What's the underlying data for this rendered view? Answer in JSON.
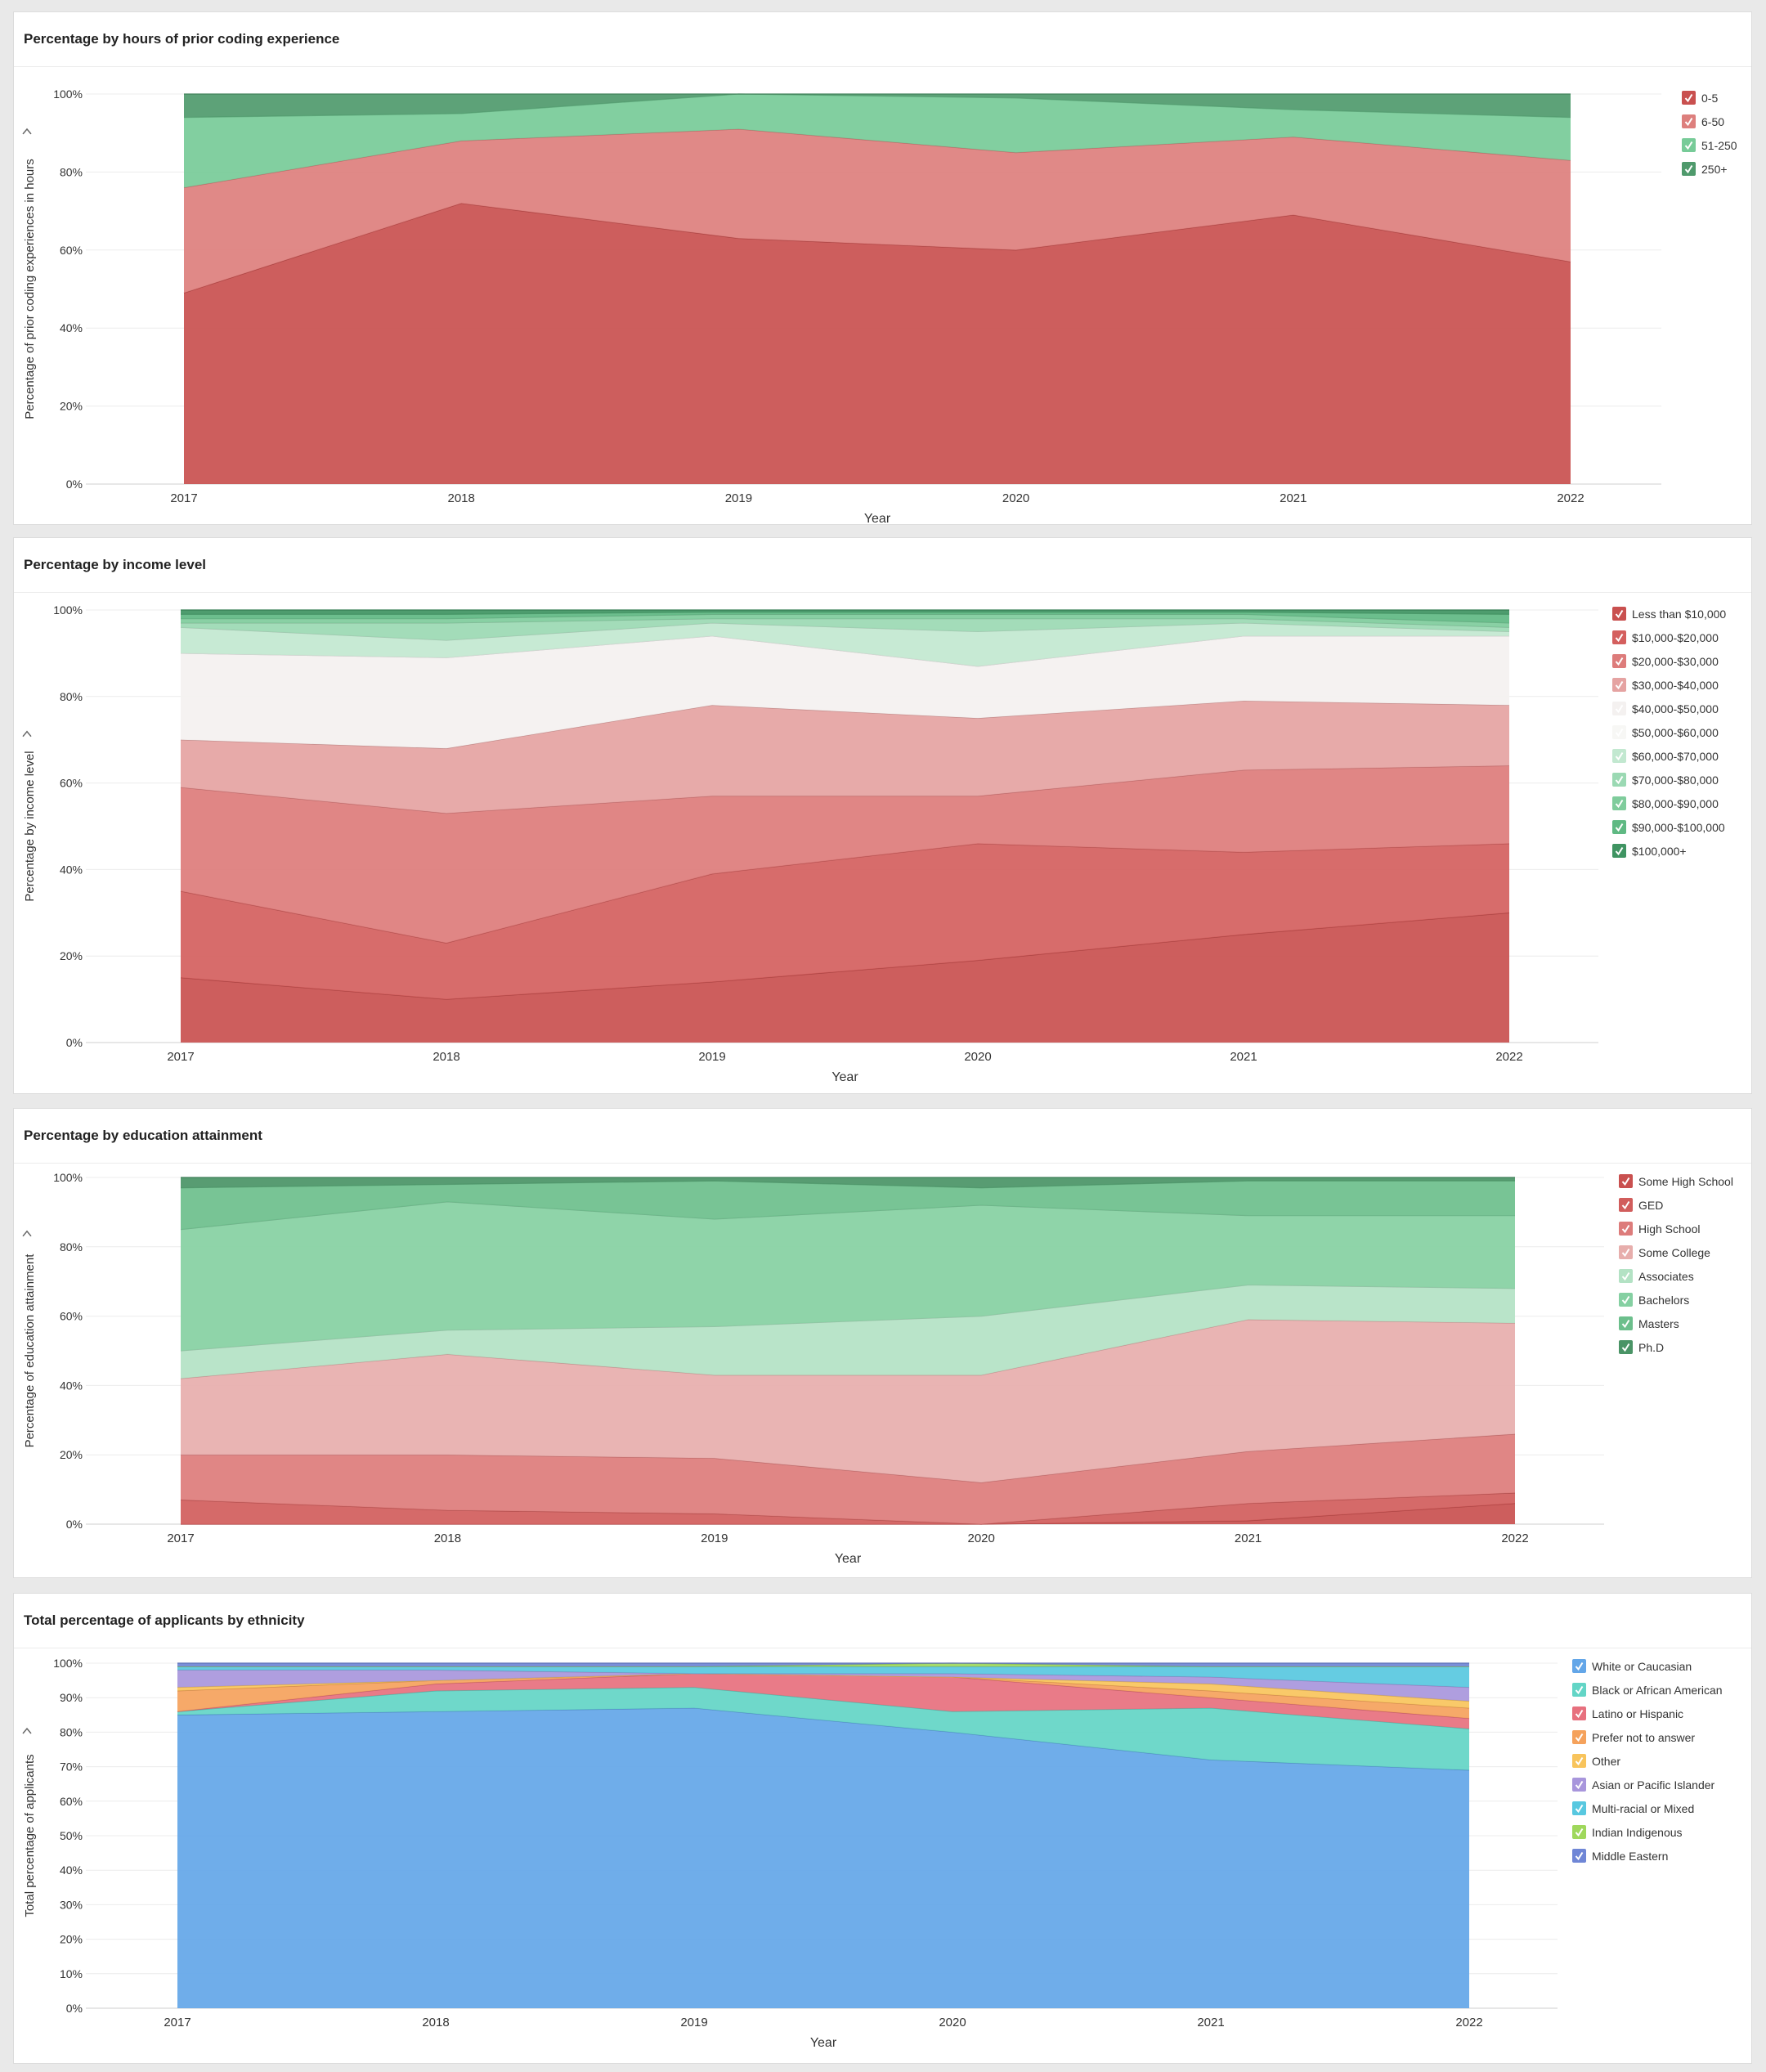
{
  "chart_data": [
    {
      "type": "area",
      "stacked": true,
      "title": "Percentage by hours of prior coding experience",
      "xlabel": "Year",
      "ylabel": "Percentage of prior coding experiences in hours",
      "ylim": [
        0,
        100
      ],
      "yticks": [
        "0%",
        "20%",
        "40%",
        "60%",
        "80%",
        "100%"
      ],
      "categories": [
        "2017",
        "2018",
        "2019",
        "2020",
        "2021",
        "2022"
      ],
      "legend_position": "top-right",
      "series": [
        {
          "name": "0-5",
          "color": "#c9504f",
          "values": [
            49,
            72,
            63,
            60,
            69,
            57
          ]
        },
        {
          "name": "6-50",
          "color": "#dd7f7d",
          "values": [
            27,
            16,
            28,
            25,
            20,
            26
          ]
        },
        {
          "name": "51-250",
          "color": "#77cb98",
          "values": [
            18,
            7,
            9,
            14,
            7,
            11
          ]
        },
        {
          "name": "250+",
          "color": "#4f9a6c",
          "values": [
            6,
            5,
            0,
            1,
            4,
            6
          ]
        }
      ]
    },
    {
      "type": "area",
      "stacked": true,
      "title": "Percentage by income level",
      "xlabel": "Year",
      "ylabel": "Percentage by income level",
      "ylim": [
        0,
        100
      ],
      "yticks": [
        "0%",
        "20%",
        "40%",
        "60%",
        "80%",
        "100%"
      ],
      "categories": [
        "2017",
        "2018",
        "2019",
        "2020",
        "2021",
        "2022"
      ],
      "legend_position": "top-right",
      "series": [
        {
          "name": "Less than $10,000",
          "color": "#c9504f",
          "values": [
            15,
            10,
            14,
            19,
            25,
            30
          ]
        },
        {
          "name": "$10,000-$20,000",
          "color": "#d45f5e",
          "values": [
            20,
            13,
            25,
            27,
            19,
            16
          ]
        },
        {
          "name": "$20,000-$30,000",
          "color": "#dd7c7b",
          "values": [
            24,
            30,
            18,
            11,
            19,
            18
          ]
        },
        {
          "name": "$30,000-$40,000",
          "color": "#e5a3a2",
          "values": [
            11,
            15,
            21,
            18,
            16,
            14
          ]
        },
        {
          "name": "$40,000-$50,000",
          "color": "#f4f1f0",
          "values": [
            20,
            21,
            16,
            12,
            15,
            16
          ]
        },
        {
          "name": "$50,000-$60,000",
          "color": "#f7f7f5",
          "values": [
            0,
            0,
            0,
            0,
            0,
            0
          ]
        },
        {
          "name": "$60,000-$70,000",
          "color": "#c2e8d0",
          "values": [
            6,
            4,
            3,
            8,
            3,
            1
          ]
        },
        {
          "name": "$70,000-$80,000",
          "color": "#9bd9b3",
          "values": [
            1,
            4,
            1,
            3,
            1,
            1
          ]
        },
        {
          "name": "$80,000-$90,000",
          "color": "#7fcc9c",
          "values": [
            1,
            1,
            1,
            1,
            1,
            1
          ]
        },
        {
          "name": "$90,000-$100,000",
          "color": "#5fb983",
          "values": [
            1,
            1,
            0.5,
            0.5,
            0.5,
            2
          ]
        },
        {
          "name": "$100,000+",
          "color": "#3f9462",
          "values": [
            1,
            1,
            0.5,
            0.5,
            0.5,
            1
          ]
        }
      ]
    },
    {
      "type": "area",
      "stacked": true,
      "title": "Percentage by education attainment",
      "xlabel": "Year",
      "ylabel": "Percentage of education attainment",
      "ylim": [
        0,
        100
      ],
      "yticks": [
        "0%",
        "20%",
        "40%",
        "60%",
        "80%",
        "100%"
      ],
      "categories": [
        "2017",
        "2018",
        "2019",
        "2020",
        "2021",
        "2022"
      ],
      "legend_position": "top-right",
      "series": [
        {
          "name": "Some High School",
          "color": "#c9504f",
          "values": [
            0,
            0,
            0,
            0,
            1,
            6
          ]
        },
        {
          "name": "GED",
          "color": "#d15d5c",
          "values": [
            7,
            4,
            3,
            0,
            5,
            3
          ]
        },
        {
          "name": "High School",
          "color": "#dd7c7b",
          "values": [
            13,
            16,
            16,
            12,
            15,
            17
          ]
        },
        {
          "name": "Some College",
          "color": "#e7aeac",
          "values": [
            22,
            29,
            24,
            31,
            38,
            32
          ]
        },
        {
          "name": "Associates",
          "color": "#b3e2c4",
          "values": [
            8,
            7,
            14,
            17,
            10,
            10
          ]
        },
        {
          "name": "Bachelors",
          "color": "#85d0a2",
          "values": [
            35,
            37,
            31,
            32,
            20,
            21
          ]
        },
        {
          "name": "Masters",
          "color": "#6cbf8c",
          "values": [
            12,
            5,
            11,
            5,
            10,
            10
          ]
        },
        {
          "name": "Ph.D",
          "color": "#4a9466",
          "values": [
            3,
            2,
            1,
            3,
            1,
            1
          ]
        }
      ]
    },
    {
      "type": "area",
      "stacked": true,
      "title": "Total percentage of applicants by ethnicity",
      "xlabel": "Year",
      "ylabel": "Total percentage of applicants",
      "ylim": [
        0,
        100
      ],
      "yticks": [
        "0%",
        "10%",
        "20%",
        "30%",
        "40%",
        "50%",
        "60%",
        "70%",
        "80%",
        "90%",
        "100%"
      ],
      "categories": [
        "2017",
        "2018",
        "2019",
        "2020",
        "2021",
        "2022"
      ],
      "legend_position": "top-right",
      "series": [
        {
          "name": "White or Caucasian",
          "color": "#63a6e8",
          "values": [
            85,
            86,
            87,
            80,
            72,
            69
          ]
        },
        {
          "name": "Black or African American",
          "color": "#63d5c6",
          "values": [
            1,
            6,
            6,
            6,
            15,
            12
          ]
        },
        {
          "name": "Latino or Hispanic",
          "color": "#e7707e",
          "values": [
            0,
            2,
            4,
            10,
            3,
            3
          ]
        },
        {
          "name": "Prefer not to answer",
          "color": "#f5a25c",
          "values": [
            6,
            1,
            0,
            0,
            2,
            3
          ]
        },
        {
          "name": "Other",
          "color": "#f8c45c",
          "values": [
            1,
            0,
            0,
            0,
            2,
            2
          ]
        },
        {
          "name": "Asian or Pacific Islander",
          "color": "#a896dc",
          "values": [
            5,
            3,
            0,
            1,
            2,
            4
          ]
        },
        {
          "name": "Multi-racial or Mixed",
          "color": "#58c8e0",
          "values": [
            1,
            1,
            2,
            2,
            3,
            6
          ]
        },
        {
          "name": "Indian Indigenous",
          "color": "#9fd85c",
          "values": [
            0,
            0,
            0,
            1,
            0,
            0
          ]
        },
        {
          "name": "Middle Eastern",
          "color": "#6f86d6",
          "values": [
            1,
            1,
            1,
            0,
            1,
            1
          ]
        }
      ]
    }
  ]
}
